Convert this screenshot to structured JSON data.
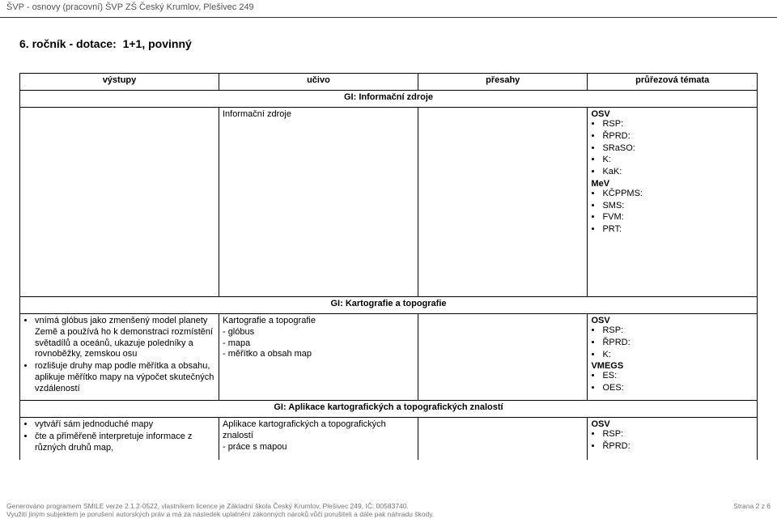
{
  "header": {
    "text": "ŠVP - osnovy (pracovní) ŠVP ZŠ Český Krumlov, Plešivec 249"
  },
  "grade_title": "6. ročník - dotace:  1+1, povinný",
  "table": {
    "col_widths_pct": [
      27,
      27,
      23,
      23
    ],
    "headers": [
      "výstupy",
      "učivo",
      "přesahy",
      "průřezová témata"
    ],
    "rows": [
      {
        "type": "section",
        "span": 4,
        "text": "GI: Informační zdroje"
      },
      {
        "type": "data",
        "outputs": [],
        "ucivo": [
          "Informační zdroje"
        ],
        "presahy": [],
        "temata": {
          "blocks": [
            {
              "title": "OSV",
              "items": [
                "RSP:",
                "ŘPRD:",
                "SRaSO:",
                "K:",
                "KaK:"
              ]
            },
            {
              "title": "MeV",
              "items": [
                "KČPPMS:",
                "SMS:",
                "FVM:",
                "PRT:"
              ]
            }
          ]
        },
        "tall": true
      },
      {
        "type": "section",
        "span": 4,
        "text": "GI: Kartografie a topografie"
      },
      {
        "type": "data",
        "outputs": [
          "vnímá glóbus jako zmenšený model planety Země a používá ho k demonstraci rozmístění světadílů a oceánů, ukazuje poledníky a rovnoběžky, zemskou osu",
          "rozlišuje druhy map podle měřítka a obsahu, aplikuje měřítko mapy na výpočet skutečných vzdáleností"
        ],
        "ucivo": [
          "Kartografie a topografie",
          "- glóbus",
          "- mapa",
          "- měřítko a obsah map"
        ],
        "presahy": [],
        "temata": {
          "blocks": [
            {
              "title": "OSV",
              "items": [
                "RSP:",
                "ŘPRD:",
                "K:"
              ]
            },
            {
              "title": "VMEGS",
              "items": [
                "ES:",
                "OES:"
              ]
            }
          ]
        }
      },
      {
        "type": "section",
        "span": 4,
        "text": "GI: Aplikace kartografických a topografických znalostí"
      },
      {
        "type": "data",
        "outputs": [
          "vytváří sám jednoduché mapy",
          "čte a přiměřeně interpretuje informace z různých druhů map,"
        ],
        "ucivo": [
          "Aplikace kartografických a topografických znalostí",
          "- práce s mapou"
        ],
        "presahy": [],
        "temata": {
          "blocks": [
            {
              "title": "OSV",
              "items": [
                "RSP:",
                "ŘPRD:"
              ]
            }
          ]
        },
        "open_bottom": true
      }
    ]
  },
  "footer": {
    "left_line1": "Generováno programem SMILE verze 2.1.2-0522, vlastníkem licence je Základní škola Český Krumlov, Plešivec 249, IČ: 00583740.",
    "left_line2": "Využití jiným subjektem je porušení autorských práv a má za následek uplatnění zákonných nároků vůči porušiteli a dále pak náhradu škody.",
    "right": "Strana 2 z 6"
  }
}
